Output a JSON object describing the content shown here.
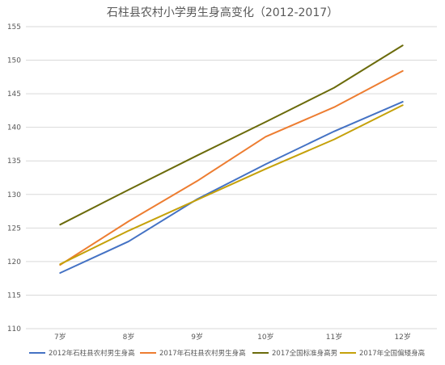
{
  "chart_data": {
    "type": "line",
    "title": "石柱县农村小学男生身高变化（2012-2017）",
    "xlabel": "",
    "ylabel": "",
    "categories": [
      "7岁",
      "8岁",
      "9岁",
      "10岁",
      "11岁",
      "12岁"
    ],
    "ylim": [
      110,
      155
    ],
    "yticks": [
      110,
      115,
      120,
      125,
      130,
      135,
      140,
      145,
      150,
      155
    ],
    "grid": true,
    "legend_position": "bottom",
    "series": [
      {
        "name": "2012年石柱县农村男生身高",
        "color": "#4472c4",
        "values": [
          118.3,
          123.0,
          129.3,
          134.5,
          139.4,
          143.8
        ]
      },
      {
        "name": "2017年石柱县农村男生身高",
        "color": "#ed7d31",
        "values": [
          119.5,
          126.0,
          132.0,
          138.6,
          143.0,
          148.4
        ]
      },
      {
        "name": "2017全国标准身高男",
        "color": "#6b6b0b",
        "values": [
          125.5,
          130.7,
          135.8,
          140.8,
          145.9,
          152.2
        ]
      },
      {
        "name": "2017年全国偏矮身高",
        "color": "#c5a10a",
        "values": [
          119.6,
          124.6,
          129.2,
          133.8,
          138.2,
          143.3
        ]
      }
    ]
  }
}
